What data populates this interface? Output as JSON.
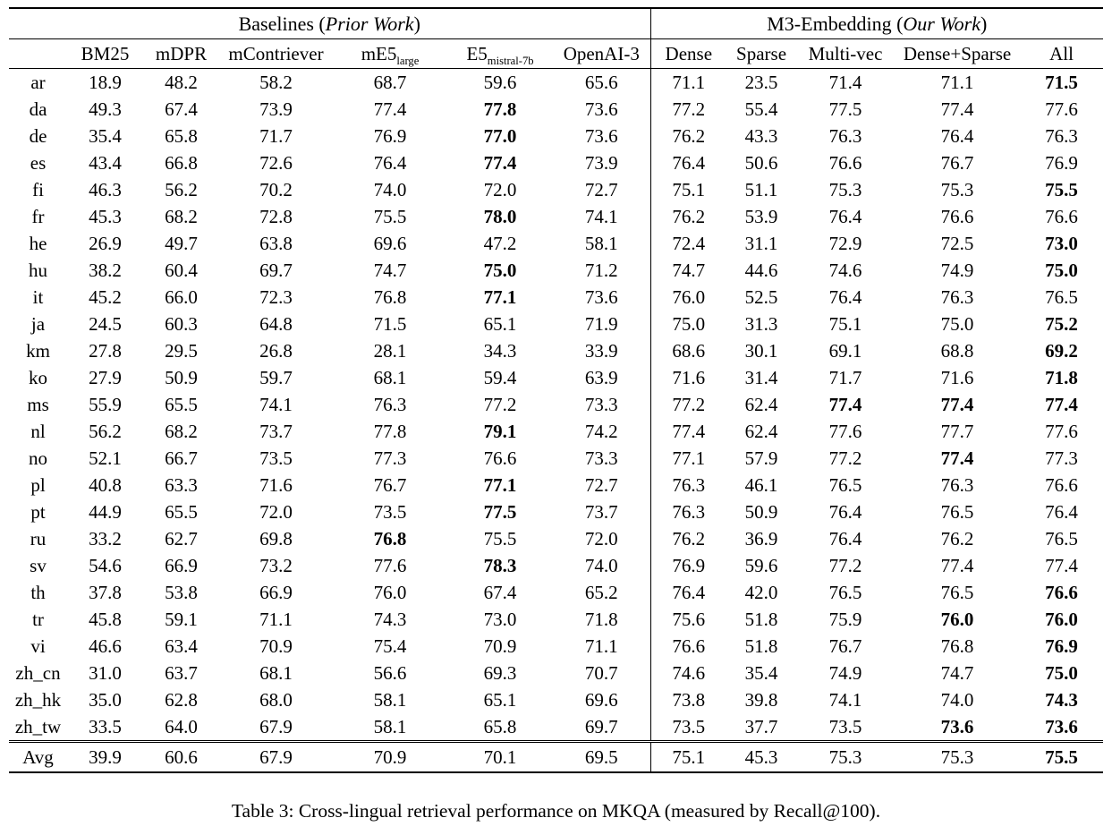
{
  "colors": {
    "background": "#ffffff",
    "text": "#000000",
    "rule": "#000000"
  },
  "caption": "Table 3: Cross-lingual retrieval performance on MKQA (measured by Recall@100).",
  "table": {
    "groups": {
      "baselines": {
        "prefix": "Baselines (",
        "italic": "Prior Work",
        "suffix": ")"
      },
      "m3": {
        "prefix": "M3-Embedding (",
        "italic": "Our Work",
        "suffix": ")"
      }
    },
    "columns": [
      {
        "key": "bm25",
        "label": "BM25"
      },
      {
        "key": "mdpr",
        "label": "mDPR"
      },
      {
        "key": "mcontriever",
        "label": "mContriever"
      },
      {
        "key": "me5_large",
        "label": "mE5",
        "sub": "large"
      },
      {
        "key": "e5_mistral_7b",
        "label": "E5",
        "sub": "mistral-7b"
      },
      {
        "key": "openai_3",
        "label": "OpenAI-3"
      },
      {
        "key": "dense",
        "label": "Dense"
      },
      {
        "key": "sparse",
        "label": "Sparse"
      },
      {
        "key": "multi_vec",
        "label": "Multi-vec"
      },
      {
        "key": "dense_sparse",
        "label": "Dense+Sparse"
      },
      {
        "key": "all",
        "label": "All"
      }
    ],
    "rows": [
      {
        "lang": "ar",
        "values": [
          "18.9",
          "48.2",
          "58.2",
          "68.7",
          "59.6",
          "65.6",
          "71.1",
          "23.5",
          "71.4",
          "71.1",
          "71.5"
        ],
        "bold": [
          10
        ]
      },
      {
        "lang": "da",
        "values": [
          "49.3",
          "67.4",
          "73.9",
          "77.4",
          "77.8",
          "73.6",
          "77.2",
          "55.4",
          "77.5",
          "77.4",
          "77.6"
        ],
        "bold": [
          4
        ]
      },
      {
        "lang": "de",
        "values": [
          "35.4",
          "65.8",
          "71.7",
          "76.9",
          "77.0",
          "73.6",
          "76.2",
          "43.3",
          "76.3",
          "76.4",
          "76.3"
        ],
        "bold": [
          4
        ]
      },
      {
        "lang": "es",
        "values": [
          "43.4",
          "66.8",
          "72.6",
          "76.4",
          "77.4",
          "73.9",
          "76.4",
          "50.6",
          "76.6",
          "76.7",
          "76.9"
        ],
        "bold": [
          4
        ]
      },
      {
        "lang": "fi",
        "values": [
          "46.3",
          "56.2",
          "70.2",
          "74.0",
          "72.0",
          "72.7",
          "75.1",
          "51.1",
          "75.3",
          "75.3",
          "75.5"
        ],
        "bold": [
          10
        ]
      },
      {
        "lang": "fr",
        "values": [
          "45.3",
          "68.2",
          "72.8",
          "75.5",
          "78.0",
          "74.1",
          "76.2",
          "53.9",
          "76.4",
          "76.6",
          "76.6"
        ],
        "bold": [
          4
        ]
      },
      {
        "lang": "he",
        "values": [
          "26.9",
          "49.7",
          "63.8",
          "69.6",
          "47.2",
          "58.1",
          "72.4",
          "31.1",
          "72.9",
          "72.5",
          "73.0"
        ],
        "bold": [
          10
        ]
      },
      {
        "lang": "hu",
        "values": [
          "38.2",
          "60.4",
          "69.7",
          "74.7",
          "75.0",
          "71.2",
          "74.7",
          "44.6",
          "74.6",
          "74.9",
          "75.0"
        ],
        "bold": [
          4,
          10
        ]
      },
      {
        "lang": "it",
        "values": [
          "45.2",
          "66.0",
          "72.3",
          "76.8",
          "77.1",
          "73.6",
          "76.0",
          "52.5",
          "76.4",
          "76.3",
          "76.5"
        ],
        "bold": [
          4
        ]
      },
      {
        "lang": "ja",
        "values": [
          "24.5",
          "60.3",
          "64.8",
          "71.5",
          "65.1",
          "71.9",
          "75.0",
          "31.3",
          "75.1",
          "75.0",
          "75.2"
        ],
        "bold": [
          10
        ]
      },
      {
        "lang": "km",
        "values": [
          "27.8",
          "29.5",
          "26.8",
          "28.1",
          "34.3",
          "33.9",
          "68.6",
          "30.1",
          "69.1",
          "68.8",
          "69.2"
        ],
        "bold": [
          10
        ]
      },
      {
        "lang": "ko",
        "values": [
          "27.9",
          "50.9",
          "59.7",
          "68.1",
          "59.4",
          "63.9",
          "71.6",
          "31.4",
          "71.7",
          "71.6",
          "71.8"
        ],
        "bold": [
          10
        ]
      },
      {
        "lang": "ms",
        "values": [
          "55.9",
          "65.5",
          "74.1",
          "76.3",
          "77.2",
          "73.3",
          "77.2",
          "62.4",
          "77.4",
          "77.4",
          "77.4"
        ],
        "bold": [
          8,
          9,
          10
        ]
      },
      {
        "lang": "nl",
        "values": [
          "56.2",
          "68.2",
          "73.7",
          "77.8",
          "79.1",
          "74.2",
          "77.4",
          "62.4",
          "77.6",
          "77.7",
          "77.6"
        ],
        "bold": [
          4
        ]
      },
      {
        "lang": "no",
        "values": [
          "52.1",
          "66.7",
          "73.5",
          "77.3",
          "76.6",
          "73.3",
          "77.1",
          "57.9",
          "77.2",
          "77.4",
          "77.3"
        ],
        "bold": [
          9
        ]
      },
      {
        "lang": "pl",
        "values": [
          "40.8",
          "63.3",
          "71.6",
          "76.7",
          "77.1",
          "72.7",
          "76.3",
          "46.1",
          "76.5",
          "76.3",
          "76.6"
        ],
        "bold": [
          4
        ]
      },
      {
        "lang": "pt",
        "values": [
          "44.9",
          "65.5",
          "72.0",
          "73.5",
          "77.5",
          "73.7",
          "76.3",
          "50.9",
          "76.4",
          "76.5",
          "76.4"
        ],
        "bold": [
          4
        ]
      },
      {
        "lang": "ru",
        "values": [
          "33.2",
          "62.7",
          "69.8",
          "76.8",
          "75.5",
          "72.0",
          "76.2",
          "36.9",
          "76.4",
          "76.2",
          "76.5"
        ],
        "bold": [
          3
        ]
      },
      {
        "lang": "sv",
        "values": [
          "54.6",
          "66.9",
          "73.2",
          "77.6",
          "78.3",
          "74.0",
          "76.9",
          "59.6",
          "77.2",
          "77.4",
          "77.4"
        ],
        "bold": [
          4
        ]
      },
      {
        "lang": "th",
        "values": [
          "37.8",
          "53.8",
          "66.9",
          "76.0",
          "67.4",
          "65.2",
          "76.4",
          "42.0",
          "76.5",
          "76.5",
          "76.6"
        ],
        "bold": [
          10
        ]
      },
      {
        "lang": "tr",
        "values": [
          "45.8",
          "59.1",
          "71.1",
          "74.3",
          "73.0",
          "71.8",
          "75.6",
          "51.8",
          "75.9",
          "76.0",
          "76.0"
        ],
        "bold": [
          9,
          10
        ]
      },
      {
        "lang": "vi",
        "values": [
          "46.6",
          "63.4",
          "70.9",
          "75.4",
          "70.9",
          "71.1",
          "76.6",
          "51.8",
          "76.7",
          "76.8",
          "76.9"
        ],
        "bold": [
          10
        ]
      },
      {
        "lang": "zh_cn",
        "values": [
          "31.0",
          "63.7",
          "68.1",
          "56.6",
          "69.3",
          "70.7",
          "74.6",
          "35.4",
          "74.9",
          "74.7",
          "75.0"
        ],
        "bold": [
          10
        ]
      },
      {
        "lang": "zh_hk",
        "values": [
          "35.0",
          "62.8",
          "68.0",
          "58.1",
          "65.1",
          "69.6",
          "73.8",
          "39.8",
          "74.1",
          "74.0",
          "74.3"
        ],
        "bold": [
          10
        ]
      },
      {
        "lang": "zh_tw",
        "values": [
          "33.5",
          "64.0",
          "67.9",
          "58.1",
          "65.8",
          "69.7",
          "73.5",
          "37.7",
          "73.5",
          "73.6",
          "73.6"
        ],
        "bold": [
          9,
          10
        ]
      },
      {
        "lang": "Avg",
        "values": [
          "39.9",
          "60.6",
          "67.9",
          "70.9",
          "70.1",
          "69.5",
          "75.1",
          "45.3",
          "75.3",
          "75.3",
          "75.5"
        ],
        "bold": [
          10
        ]
      }
    ]
  }
}
